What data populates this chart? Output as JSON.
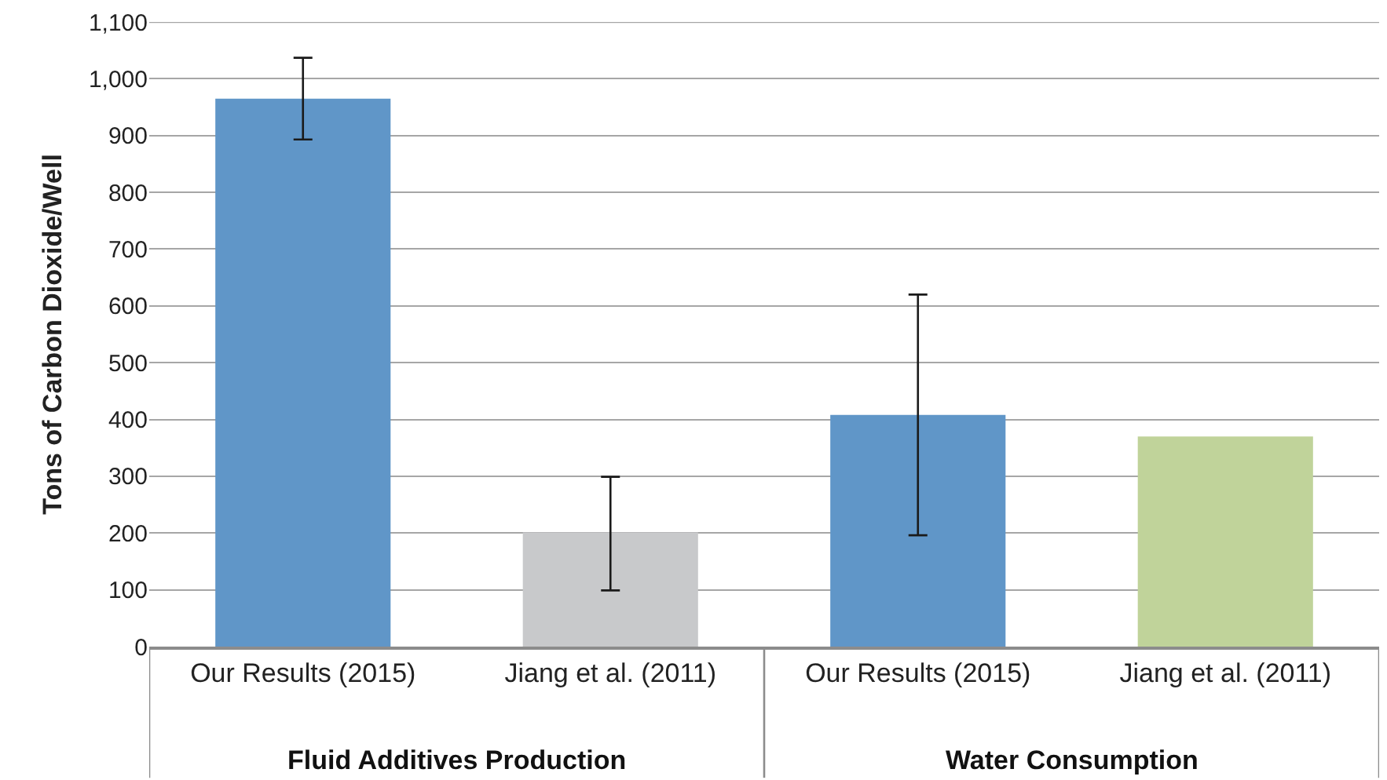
{
  "chart_data": {
    "type": "bar",
    "ylabel": "Tons of Carbon Dioxide/Well",
    "categories": [
      "Our Results (2015)",
      "Jiang et al. (2011)",
      "Our Results (2015)",
      "Jiang et al. (2011)"
    ],
    "values": [
      965,
      201,
      408,
      370
    ],
    "colors": [
      "#6096c8",
      "#c8c9cb",
      "#6096c8",
      "#c0d39a"
    ],
    "errors": [
      [
        893,
        1037
      ],
      [
        99,
        299
      ],
      [
        196,
        620
      ],
      null
    ],
    "annotations": [
      "Fluid Additives Production",
      "Water Consumption"
    ],
    "ylim": [
      0,
      1100
    ],
    "yticks": [
      0,
      100,
      200,
      300,
      400,
      500,
      600,
      700,
      800,
      900,
      {
        "value": 1000,
        "label": "1,000"
      },
      {
        "value": 1100,
        "label": "1,100"
      }
    ],
    "grid": "y"
  }
}
